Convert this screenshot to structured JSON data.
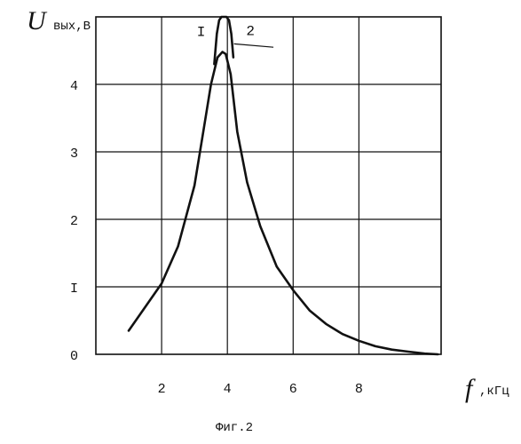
{
  "colors": {
    "ink": "#111111",
    "background": "#ffffff"
  },
  "chart_data": {
    "type": "line",
    "y_symbol": "U",
    "y_unit": "вых,В",
    "x_symbol": "f",
    "x_unit": ",кГц",
    "xlim": [
      0,
      10.5
    ],
    "ylim": [
      0,
      5
    ],
    "x_ticks": [
      {
        "value": 2,
        "label": "2"
      },
      {
        "value": 4,
        "label": "4"
      },
      {
        "value": 6,
        "label": "6"
      },
      {
        "value": 8,
        "label": "8"
      }
    ],
    "y_ticks": [
      {
        "value": 0,
        "label": "0"
      },
      {
        "value": 1,
        "label": "I"
      },
      {
        "value": 2,
        "label": "2"
      },
      {
        "value": 3,
        "label": "3"
      },
      {
        "value": 4,
        "label": "4"
      }
    ],
    "grid": true,
    "series": [
      {
        "name": "I",
        "x": [
          3.6,
          3.68,
          3.75,
          3.82,
          3.9,
          3.97,
          4.05,
          4.12,
          4.18
        ],
        "y": [
          4.3,
          4.75,
          4.95,
          5.0,
          5.0,
          5.0,
          4.95,
          4.75,
          4.4
        ]
      },
      {
        "name": "2",
        "x": [
          1.0,
          1.5,
          2.0,
          2.5,
          3.0,
          3.3,
          3.5,
          3.7,
          3.85,
          3.95,
          4.1,
          4.3,
          4.6,
          5.0,
          5.5,
          6.0,
          6.5,
          7.0,
          7.5,
          8.0,
          8.5,
          9.0,
          9.5,
          10.0,
          10.4
        ],
        "y": [
          0.35,
          0.7,
          1.05,
          1.6,
          2.5,
          3.4,
          4.0,
          4.4,
          4.48,
          4.45,
          4.15,
          3.3,
          2.55,
          1.9,
          1.3,
          0.95,
          0.65,
          0.45,
          0.3,
          0.2,
          0.12,
          0.07,
          0.04,
          0.01,
          0.0
        ]
      }
    ],
    "curve_labels": [
      {
        "series": "I",
        "text": "I",
        "x": 3.2,
        "y": 4.72
      },
      {
        "series": "2",
        "text": "2",
        "x": 4.7,
        "y": 4.73,
        "leader": {
          "x1": 4.2,
          "y1": 4.6,
          "x2": 5.4,
          "y2": 4.55
        }
      }
    ],
    "caption": "Фиг.2"
  }
}
